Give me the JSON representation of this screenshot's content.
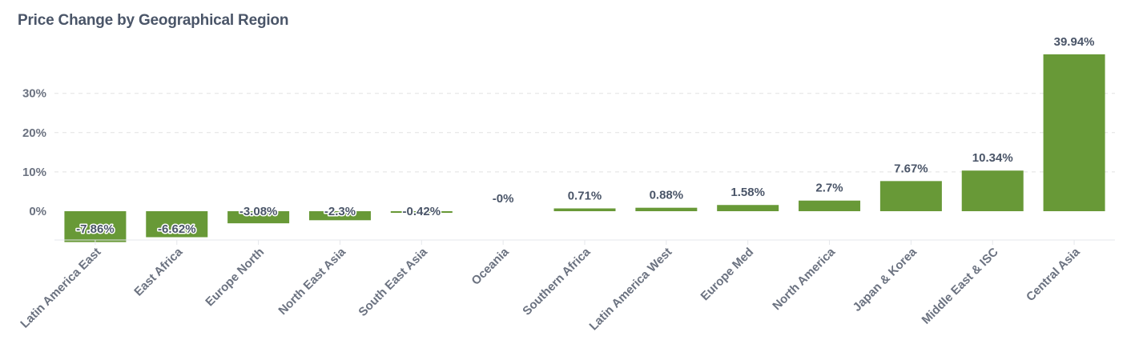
{
  "chart_data": {
    "type": "bar",
    "title": "Price Change by Geographical Region",
    "xlabel": "",
    "ylabel": "",
    "categories": [
      "Latin America East",
      "East Africa",
      "Europe North",
      "North East Asia",
      "South East Asia",
      "Oceania",
      "Southern Africa",
      "Latin America West",
      "Europe Med",
      "North America",
      "Japan & Korea",
      "Middle East & ISC",
      "Central Asia"
    ],
    "values": [
      -7.86,
      -6.62,
      -3.08,
      -2.3,
      -0.42,
      0,
      0.71,
      0.88,
      1.58,
      2.7,
      7.67,
      10.34,
      39.94
    ],
    "data_labels": [
      "-7.86%",
      "-6.62%",
      "-3.08%",
      "-2.3%",
      "-0.42%",
      "-0%",
      "0.71%",
      "0.88%",
      "1.58%",
      "2.7%",
      "7.67%",
      "10.34%",
      "39.94%"
    ],
    "yticks": [
      0,
      10,
      20,
      30
    ],
    "ytick_labels": [
      "0%",
      "10%",
      "20%",
      "30%"
    ],
    "ylim": [
      -7.86,
      39.94
    ],
    "grid": true,
    "bar_color": "#689937",
    "grid_color": "#e2e2e2"
  }
}
